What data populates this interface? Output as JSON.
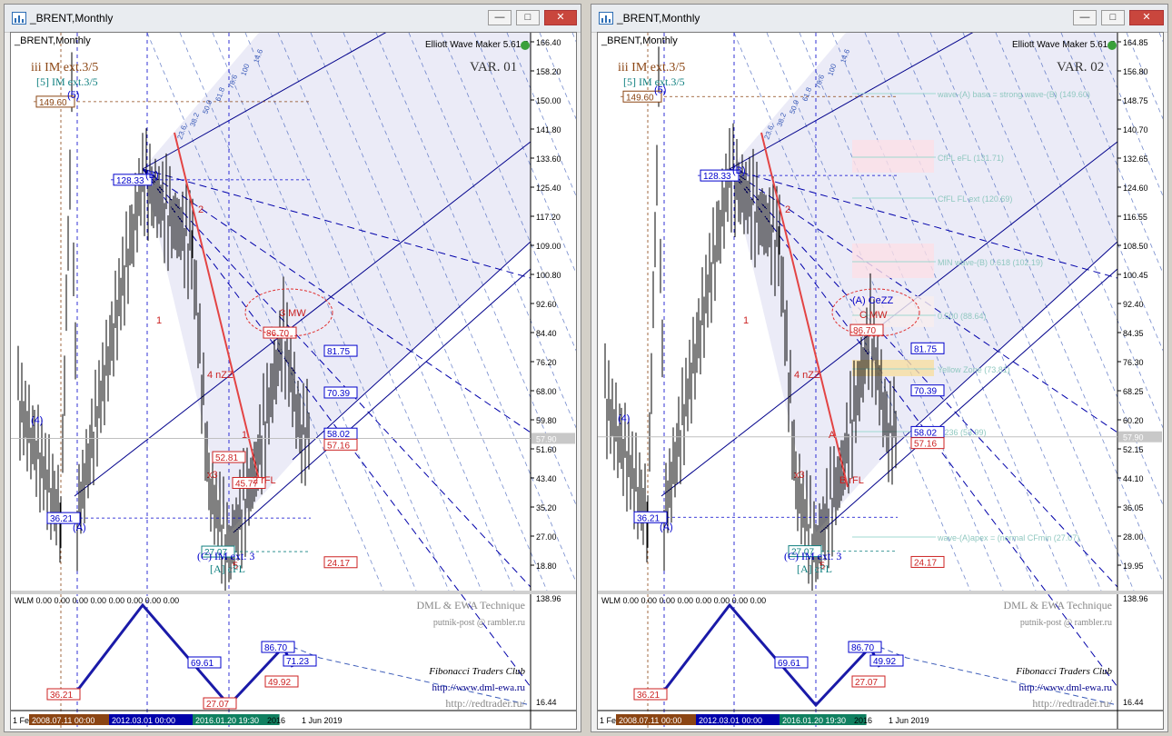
{
  "colors": {
    "accent": "#0000cc",
    "red": "#cc2222",
    "brown": "#8b4513",
    "teal": "#108080",
    "fibo": "#3a5ab8"
  },
  "windows": [
    {
      "title": "_BRENT,Monthly",
      "symbol": "_BRENT,Monthly",
      "indicator": "Elliott Wave Maker 5.61.5",
      "variant": "VAR. 01",
      "wave_top_line": "iii IM ext.3/5",
      "wave_sub_line": "[5] IM ext.3/5",
      "wave_bottom_line": "(C) IM ext. 3",
      "wave_bottom_sub": "[A] cFL",
      "top_mark": "3 MW",
      "labels": {
        "high": "149.60",
        "b": "128.33",
        "low_a": "36.21",
        "low_c": "27.07",
        "h1": "86.70",
        "l1": "81.75",
        "l2": "70.39",
        "l3": "58.02",
        "l4": "57.16",
        "l5": "24.17",
        "p1": "52.81",
        "p2": "45.77"
      },
      "price_axis": [
        "166.40",
        "158.20",
        "150.00",
        "141.80",
        "133.60",
        "125.40",
        "117.20",
        "109.00",
        "100.80",
        "92.60",
        "84.40",
        "76.20",
        "68.00",
        "59.80",
        "51.60",
        "43.40",
        "35.20",
        "27.00",
        "18.80"
      ],
      "current_price": "57.90",
      "sub_axis_top": "138.96",
      "sub_axis_bottom": "16.44",
      "subwindow": {
        "title": "WLM 0.00 0.00 0.00 0.00 0.00 0.00 0.00 0.00",
        "labels": [
          "36.21",
          "69.61",
          "86.70",
          "71.23",
          "49.92",
          "27.07"
        ],
        "credits": [
          "DML & EWA Technique",
          "putnik-post @ rambler.ru",
          "Fibonacci Traders Club",
          "http://www.dml-ewa.ru",
          "http://redtrader.ru/"
        ]
      },
      "time_axis": [
        "1 Fe",
        "2008.07.11 00:00",
        "2012.03.01 00:00",
        "2016.01.20 19:30",
        "2016",
        "1 Jun 2019"
      ],
      "ann_lines": [],
      "swing_labels": [
        "(5)",
        "(B)",
        "(4)",
        "(A)",
        "1",
        "2",
        "x3",
        "4 nZZ",
        "5",
        "2 rFL",
        "1"
      ],
      "pitchfork_labels": [
        "23.6",
        "38.2",
        "50.0",
        "61.8",
        "78.6",
        "100",
        "14.6"
      ]
    },
    {
      "title": "_BRENT,Monthly",
      "symbol": "_BRENT,Monthly",
      "indicator": "Elliott Wave Maker 5.61.5",
      "variant": "VAR. 02",
      "wave_top_line": "iii IM ext.3/5",
      "wave_sub_line": "[5] IM ext.3/5",
      "wave_bottom_line": "(C) IM ext. 3",
      "wave_bottom_sub": "[A] cFL",
      "top_mark": "(A) CeZZ",
      "top_mark2": "C MW",
      "labels": {
        "high": "149.60",
        "b": "128.33",
        "low_a": "36.21",
        "low_c": "27.07",
        "h1": "86.70",
        "l1": "81.75",
        "l2": "70.39",
        "l3": "58.02",
        "l4": "57.16",
        "l5": "24.17"
      },
      "price_axis": [
        "164.85",
        "156.80",
        "148.75",
        "140.70",
        "132.65",
        "124.60",
        "116.55",
        "108.50",
        "100.45",
        "92.40",
        "84.35",
        "76.30",
        "68.25",
        "60.20",
        "52.15",
        "44.10",
        "36.05",
        "28.00",
        "19.95"
      ],
      "current_price": "57.90",
      "sub_axis_top": "138.96",
      "sub_axis_bottom": "16.44",
      "subwindow": {
        "title": "WLM 0.00 0.00 0.00 0.00 0.00 0.00 0.00 0.00",
        "labels": [
          "36.21",
          "69.61",
          "86.70",
          "49.92",
          "27.07"
        ],
        "credits": [
          "DML & EWA Technique",
          "putnik-post @ rambler.ru",
          "Fibonacci Traders Club",
          "http://www.dml-ewa.ru",
          "http://redtrader.ru/"
        ]
      },
      "time_axis": [
        "1 Fe",
        "2008.07.11 00:00",
        "2012.03.01 00:00",
        "2016.01.20 19:30",
        "2016",
        "1 Jun 2019"
      ],
      "ann_lines": [
        "wave-(A) base = strong wave-(B) (149.60)",
        "CfFL eFL (131.71)",
        "CfFL FL ext (120.69)",
        "MIN wave-(B) 0.618 (102.19)",
        "0.500 (88.64)",
        "Yellow Zone (73.81)",
        "0.236 (53.99)",
        "wave-(A)apex = (normal CFmin (27.07)"
      ],
      "swing_labels": [
        "(5)",
        "(B)",
        "(4)",
        "(A)",
        "1",
        "2",
        "x3",
        "4 nZZ",
        "5",
        "B rFL",
        "A"
      ],
      "pitchfork_labels": [
        "23.6",
        "38.2",
        "50.0",
        "61.8",
        "78.6",
        "100",
        "14.6"
      ]
    }
  ],
  "chart_data": [
    {
      "type": "line",
      "title": "_BRENT,Monthly VAR. 01",
      "ylim": [
        16.44,
        166.4
      ],
      "series": [
        {
          "values": [
            36.21,
            149.6,
            36.21,
            128.33,
            27.07,
            86.7,
            57.9
          ]
        }
      ]
    },
    {
      "type": "line",
      "title": "_BRENT,Monthly VAR. 02",
      "ylim": [
        16.44,
        164.85
      ],
      "series": [
        {
          "values": [
            36.21,
            149.6,
            36.21,
            128.33,
            27.07,
            86.7,
            57.9
          ]
        }
      ]
    }
  ]
}
